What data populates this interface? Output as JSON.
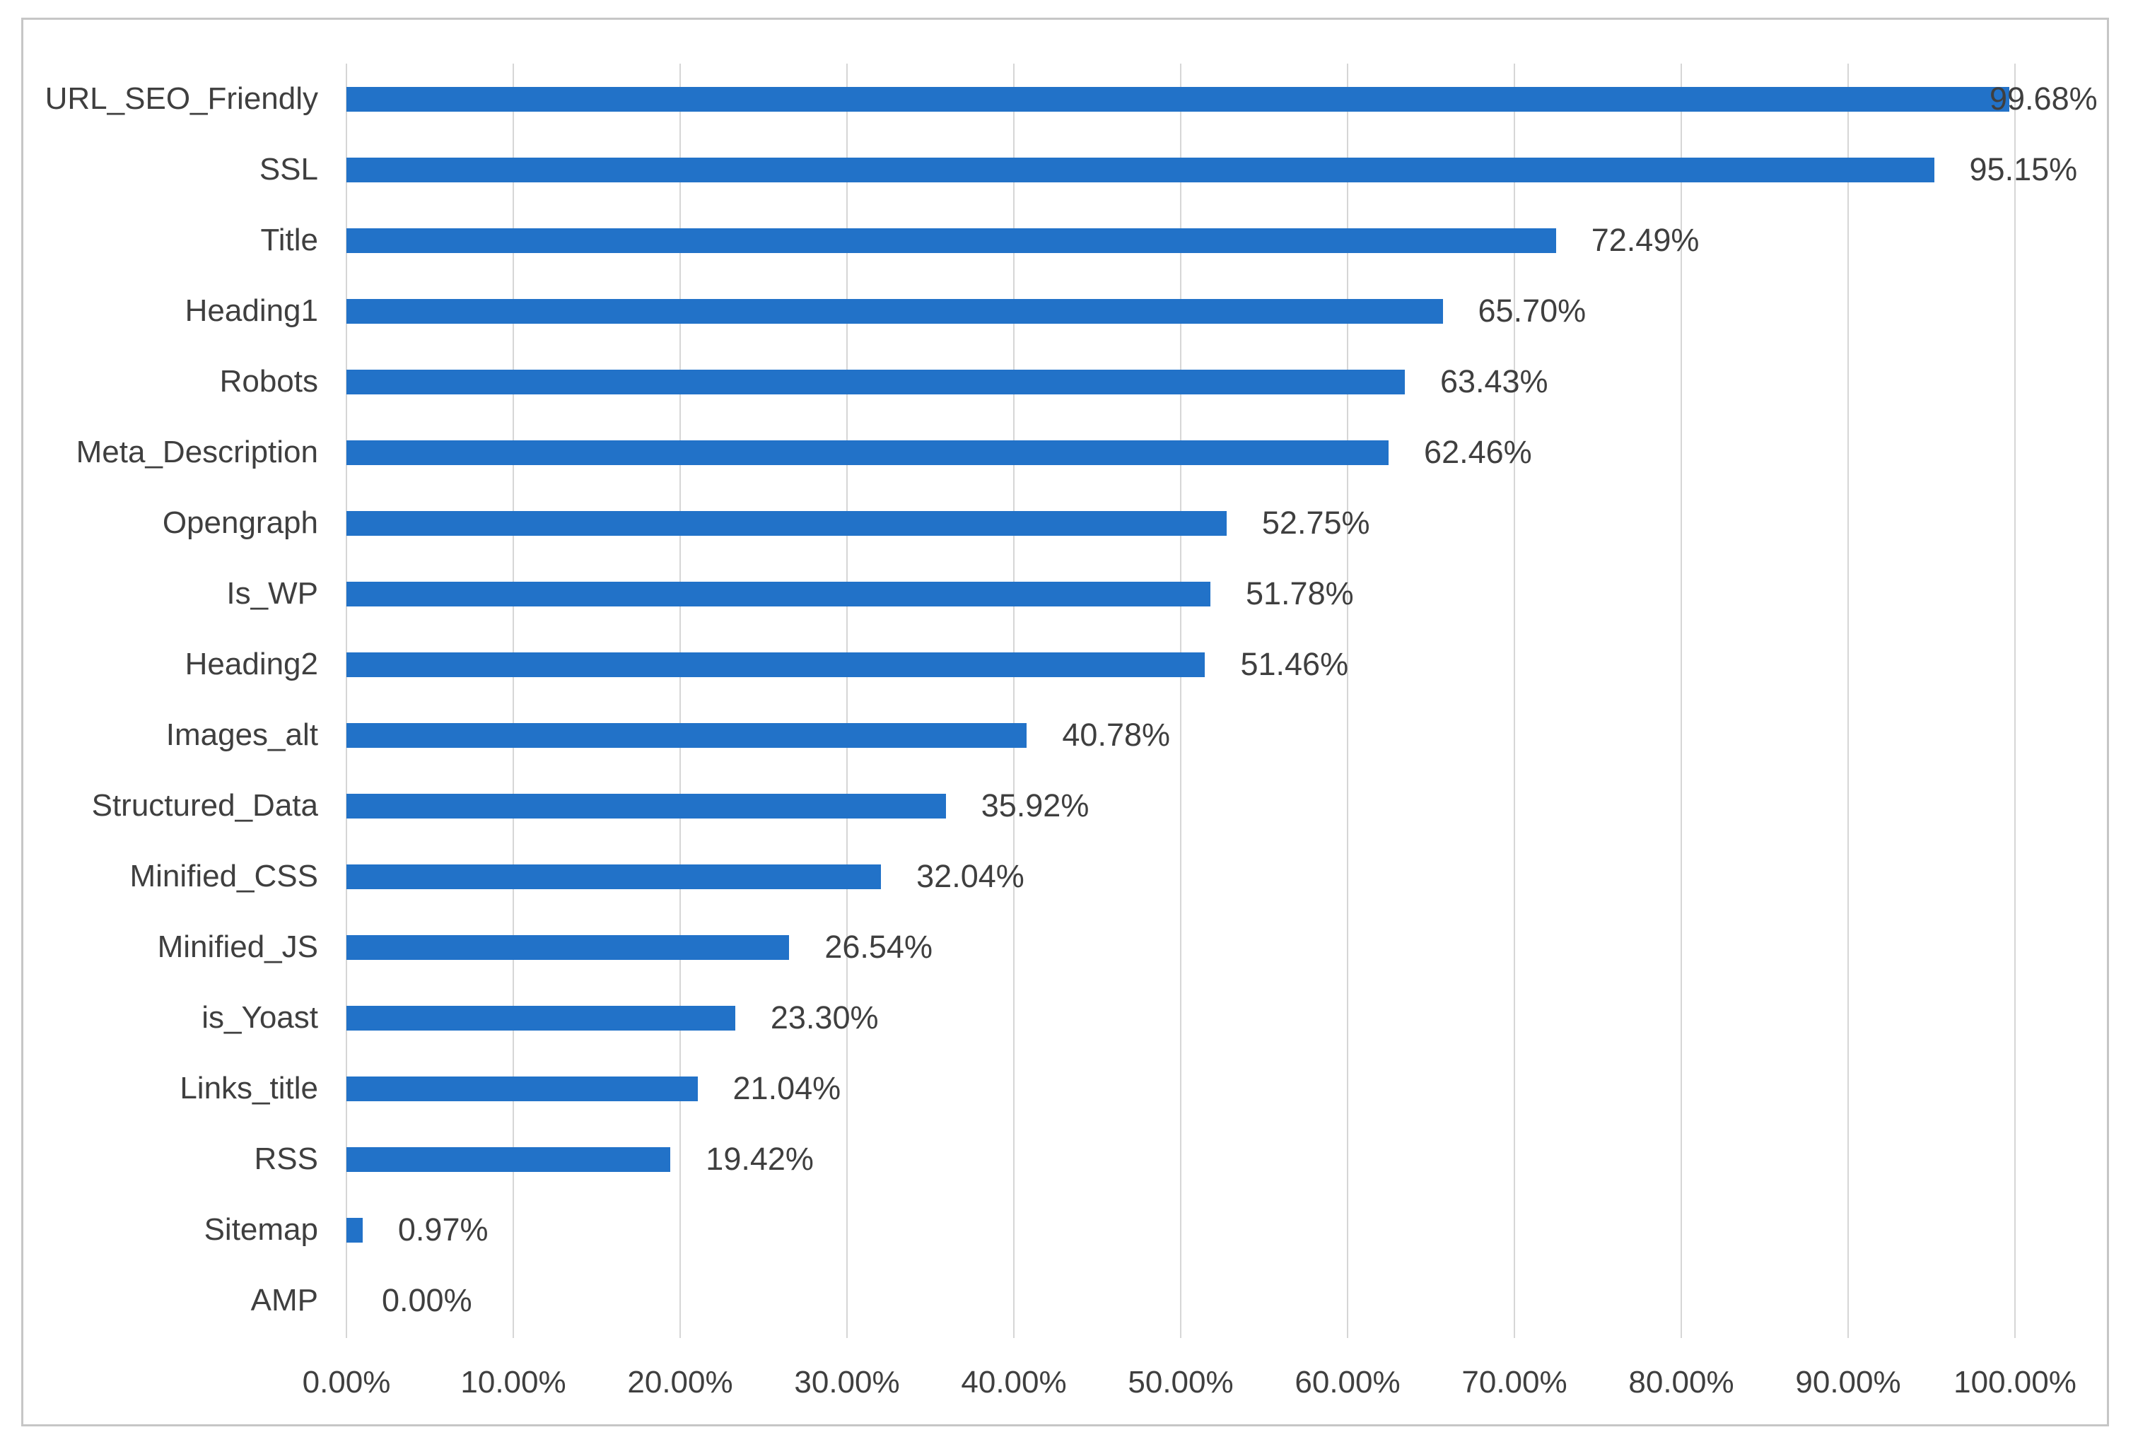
{
  "chart_data": {
    "type": "bar",
    "orientation": "horizontal",
    "title": "",
    "xlabel": "",
    "ylabel": "",
    "categories": [
      "URL_SEO_Friendly",
      "SSL",
      "Title",
      "Heading1",
      "Robots",
      "Meta_Description",
      "Opengraph",
      "Is_WP",
      "Heading2",
      "Images_alt",
      "Structured_Data",
      "Minified_CSS",
      "Minified_JS",
      "is_Yoast",
      "Links_title",
      "RSS",
      "Sitemap",
      "AMP"
    ],
    "values": [
      99.68,
      95.15,
      72.49,
      65.7,
      63.43,
      62.46,
      52.75,
      51.78,
      51.46,
      40.78,
      35.92,
      32.04,
      26.54,
      23.3,
      21.04,
      19.42,
      0.97,
      0.0
    ],
    "value_labels": [
      "99.68%",
      "95.15%",
      "72.49%",
      "65.70%",
      "63.43%",
      "62.46%",
      "52.75%",
      "51.78%",
      "51.46%",
      "40.78%",
      "35.92%",
      "32.04%",
      "26.54%",
      "23.30%",
      "21.04%",
      "19.42%",
      "0.97%",
      "0.00%"
    ],
    "xlim": [
      0,
      100
    ],
    "x_tick_values": [
      0,
      10,
      20,
      30,
      40,
      50,
      60,
      70,
      80,
      90,
      100
    ],
    "x_tick_labels": [
      "0.00%",
      "10.00%",
      "20.00%",
      "30.00%",
      "40.00%",
      "50.00%",
      "60.00%",
      "70.00%",
      "80.00%",
      "90.00%",
      "100.00%"
    ],
    "grid": true,
    "legend": false,
    "colors": {
      "bar": "#2272c8",
      "gridline": "#d6d6d6",
      "text": "#3f3f3f",
      "chart_border": "#c6c6c6"
    }
  }
}
